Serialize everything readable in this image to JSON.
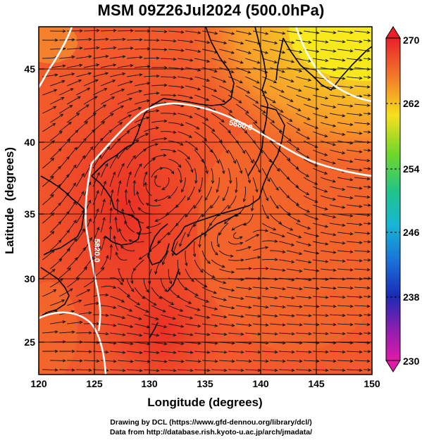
{
  "title": "MSM 09Z26Jul2024 (500.0hPa)",
  "xlabel": "Longitude (degrees)",
  "ylabel": "Latitude  (degrees)",
  "x_ticks": [
    "120",
    "125",
    "130",
    "135",
    "140",
    "145",
    "150"
  ],
  "y_ticks": [
    "25",
    "30",
    "35",
    "40",
    "45"
  ],
  "colorbar_ticks": [
    "270",
    "262",
    "254",
    "246",
    "238",
    "230"
  ],
  "contour_labels": [
    "5880.0",
    "5820.0"
  ],
  "footer": {
    "line1": "Drawing by DCL (https://www.gfd-dennou.org/library/dcl/)",
    "line2": "Data from http://database.rish.kyoto-u.ac.jp/arch/jmadata/"
  },
  "colors": {
    "field_base": "#f2542a",
    "field_light": "#f46a2c",
    "field_warm": "#ec3c27",
    "field_north": "#f98a2a",
    "field_northeast": "#f6ec1e"
  }
}
